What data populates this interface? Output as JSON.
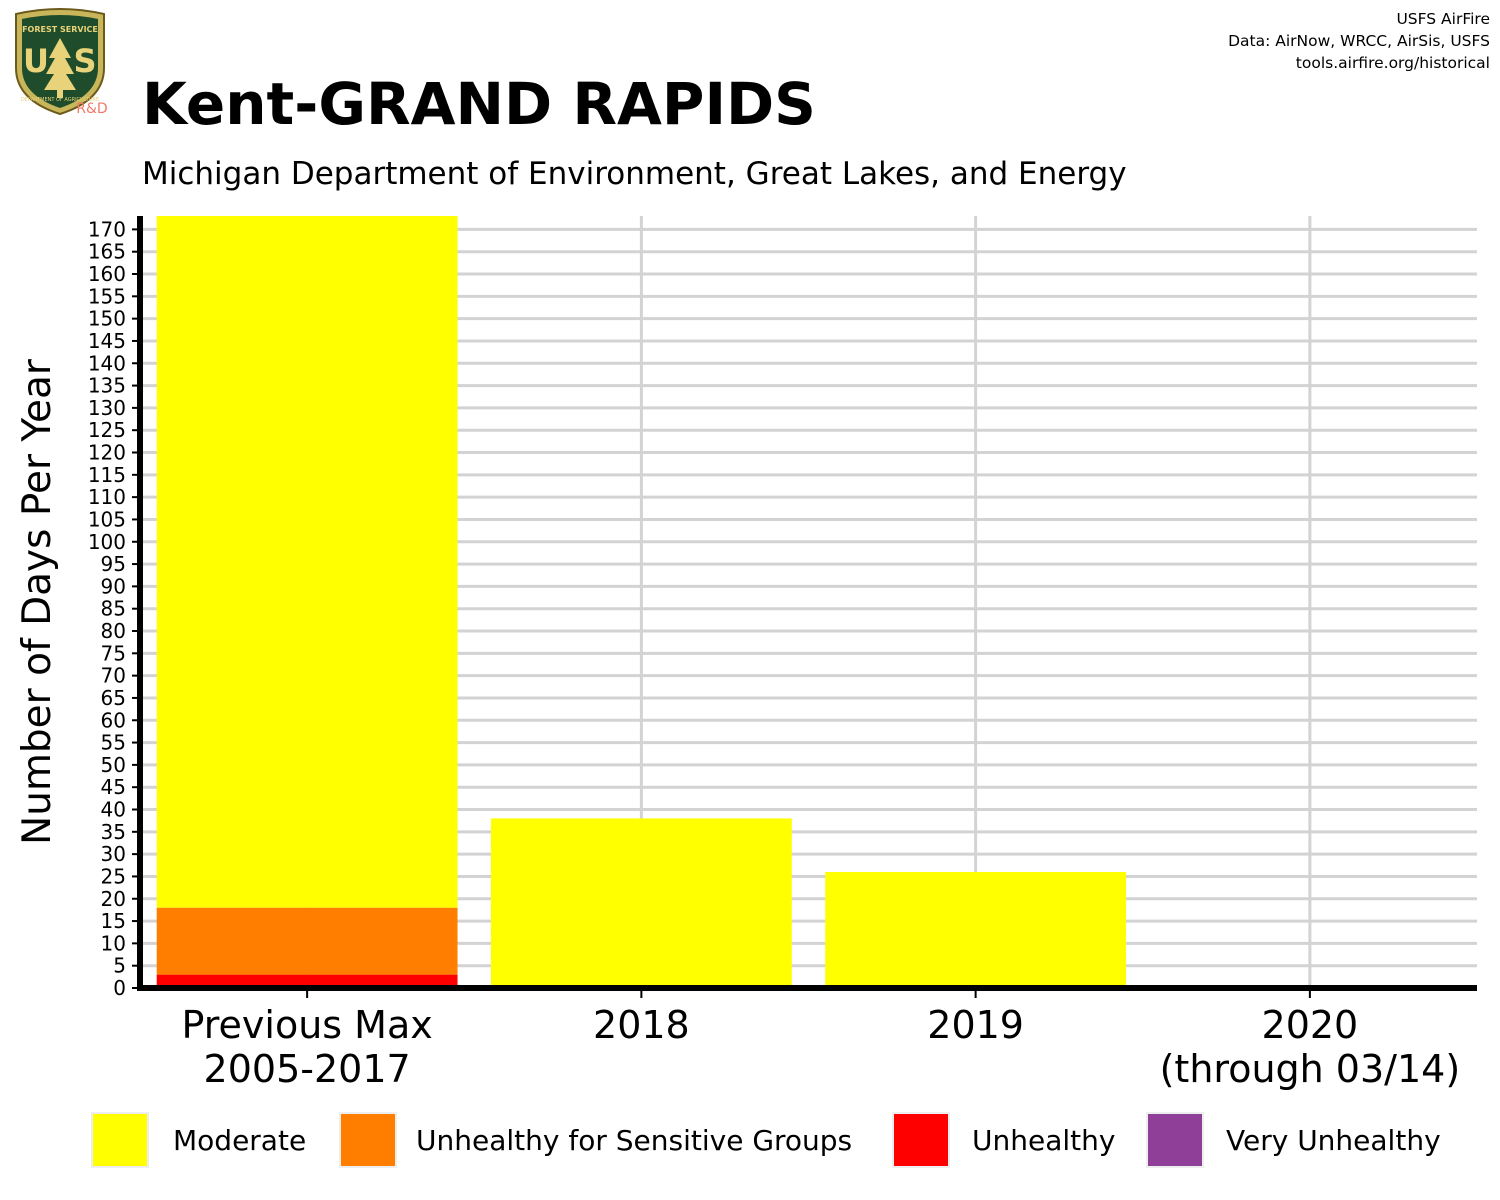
{
  "header": {
    "title": "Kent-GRAND RAPIDS",
    "subtitle": "Michigan Department of Environment, Great Lakes, and Energy",
    "credits": [
      "USFS AirFire",
      "Data: AirNow, WRCC, AirSis, USFS",
      "tools.airfire.org/historical"
    ]
  },
  "logo": {
    "name": "usfs-shield-logo",
    "top_text": "FOREST SERVICE",
    "letters": [
      "U",
      "S"
    ],
    "bottom_text": "DEPARTMENT OF AGRICULTURE",
    "badge": "R&D"
  },
  "chart_data": {
    "type": "bar",
    "stacked": true,
    "ylabel": "Number of Days Per Year",
    "xlabel": "",
    "ylim": [
      0,
      173
    ],
    "yticks": [
      0,
      5,
      10,
      15,
      20,
      25,
      30,
      35,
      40,
      45,
      50,
      55,
      60,
      65,
      70,
      75,
      80,
      85,
      90,
      95,
      100,
      105,
      110,
      115,
      120,
      125,
      130,
      135,
      140,
      145,
      150,
      155,
      160,
      165,
      170
    ],
    "grid": true,
    "legend_position": "bottom",
    "categories": [
      [
        "Previous Max",
        "2005-2017"
      ],
      [
        "2018"
      ],
      [
        "2019"
      ],
      [
        "2020",
        "(through 03/14)"
      ]
    ],
    "series": [
      {
        "name": "Moderate",
        "color": "#FFFF00",
        "values": [
          155,
          38,
          26,
          0
        ]
      },
      {
        "name": "Unhealthy for Sensitive Groups",
        "color": "#FF7E00",
        "values": [
          15,
          0,
          0,
          0
        ]
      },
      {
        "name": "Unhealthy",
        "color": "#FF0000",
        "values": [
          3,
          0,
          0,
          0
        ]
      },
      {
        "name": "Very Unhealthy",
        "color": "#8F3F97",
        "values": [
          0,
          0,
          0,
          0
        ]
      }
    ]
  }
}
